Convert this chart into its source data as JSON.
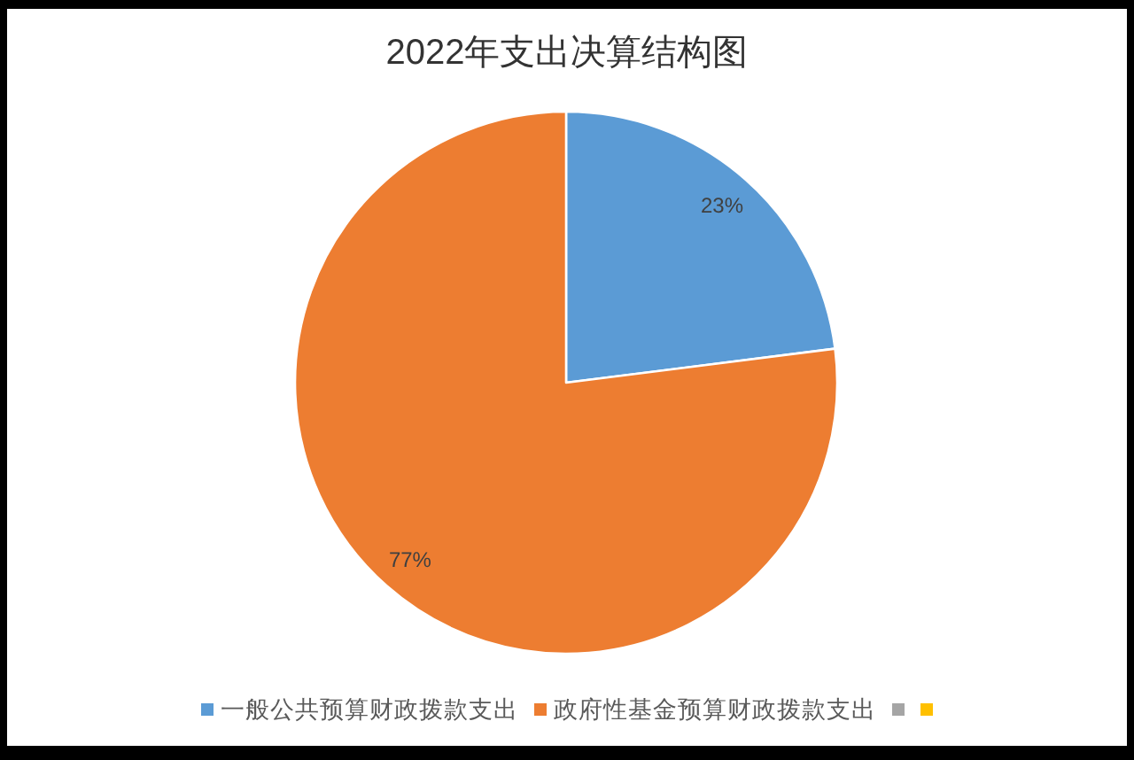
{
  "chart_data": {
    "type": "pie",
    "title": "2022年支出决算结构图",
    "categories": [
      "一般公共预算财政拨款支出",
      "政府性基金预算财政拨款支出",
      null,
      null
    ],
    "values": [
      23,
      77,
      0,
      0
    ],
    "colors": [
      "#5b9bd5",
      "#ed7d31",
      "#a5a5a5",
      "#ffc000"
    ],
    "value_labels": [
      "23%",
      "77%",
      null,
      null
    ],
    "legend": "bottom"
  }
}
